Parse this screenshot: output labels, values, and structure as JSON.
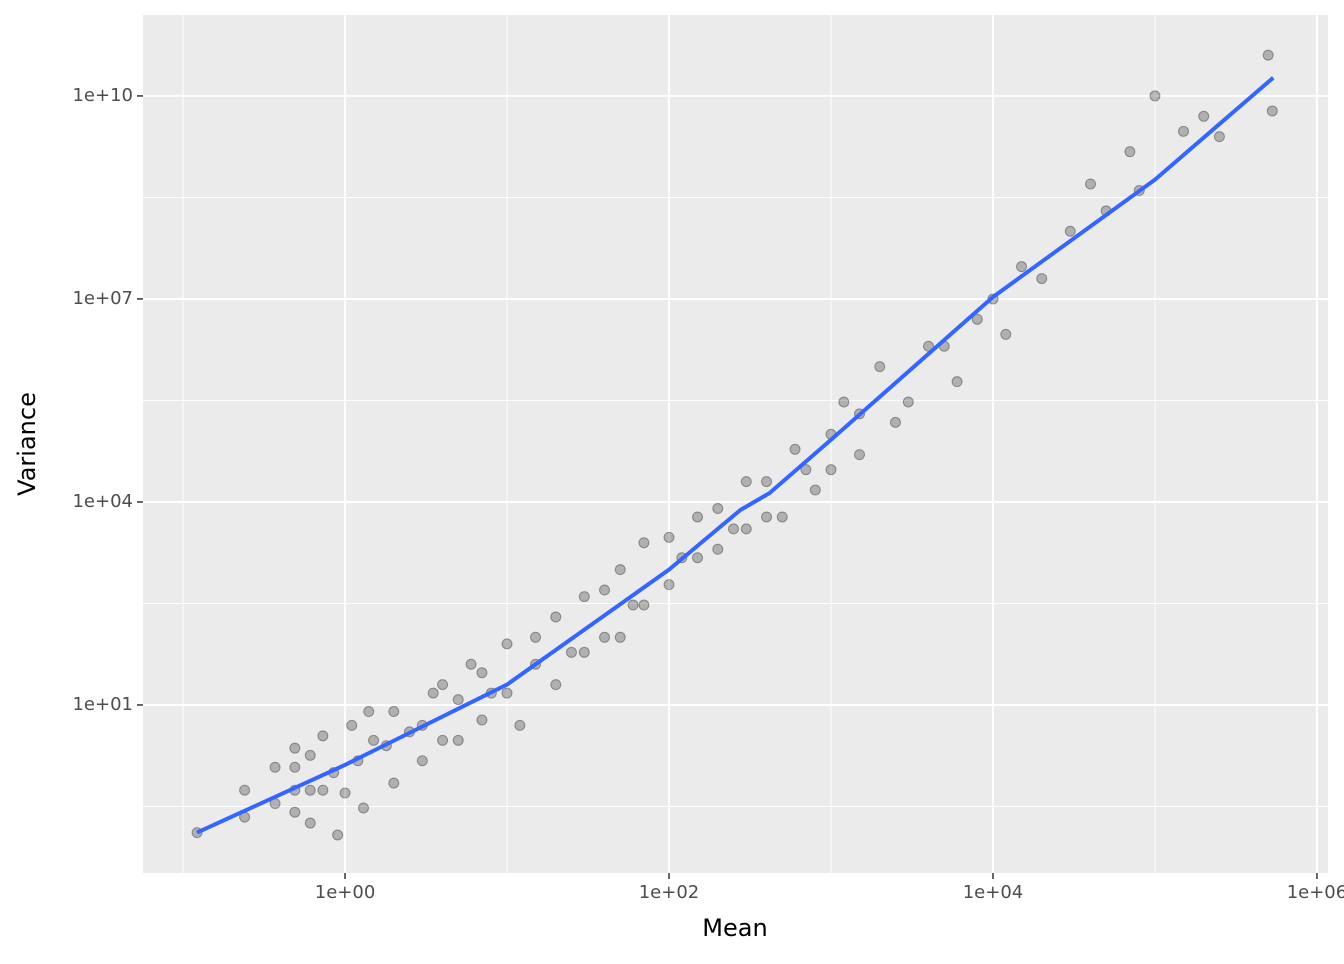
{
  "chart_data": {
    "type": "scatter",
    "x_label": "Mean",
    "y_label": "Variance",
    "xscale": "log",
    "yscale": "log",
    "grid": true,
    "xlim": [
      0.0566,
      1170000
    ],
    "ylim": [
      0.0329,
      157000000000
    ],
    "xticks": [
      {
        "value": 1,
        "label": "1e+00"
      },
      {
        "value": 100,
        "label": "1e+02"
      },
      {
        "value": 10000,
        "label": "1e+04"
      },
      {
        "value": 1000000,
        "label": "1e+06"
      }
    ],
    "yticks": [
      {
        "value": 10,
        "label": "1e+01"
      },
      {
        "value": 10000,
        "label": "1e+04"
      },
      {
        "value": 10000000,
        "label": "1e+07"
      },
      {
        "value": 10000000000,
        "label": "1e+10"
      }
    ],
    "series": [
      {
        "type": "scatter",
        "color": "#000000",
        "x": [
          0.122,
          0.24,
          0.24,
          0.37,
          0.37,
          0.49,
          0.49,
          0.49,
          0.49,
          0.61,
          0.61,
          0.61,
          0.73,
          0.73,
          0.85,
          0.9,
          1.0,
          1.1,
          1.3,
          1.5,
          1.2,
          1.4,
          1.8,
          2,
          2,
          2.5,
          3,
          3,
          3.5,
          4,
          4,
          5,
          5,
          6,
          7,
          7,
          8,
          10,
          10,
          12,
          15,
          15,
          20,
          20,
          25,
          30,
          30,
          40,
          40,
          50,
          50,
          60,
          70,
          70,
          100,
          100,
          120,
          150,
          150,
          200,
          200,
          250,
          300,
          300,
          400,
          400,
          500,
          600,
          700,
          800,
          1000,
          1000,
          1200,
          1500,
          1500,
          2000,
          2500,
          3000,
          4000,
          5000,
          6000,
          8000,
          10000,
          12000,
          15000,
          20000,
          30000,
          40000,
          50000,
          70000,
          80000,
          100000,
          150000,
          200000,
          250000,
          500000,
          530000
        ],
        "values": [
          0.13,
          0.22,
          0.55,
          0.35,
          1.2,
          0.26,
          0.55,
          1.2,
          2.3,
          0.18,
          0.55,
          1.8,
          0.55,
          3.5,
          1,
          0.12,
          0.5,
          5,
          0.3,
          3,
          1.5,
          8,
          2.5,
          0.7,
          8,
          4,
          5,
          1.5,
          15,
          20,
          3,
          3,
          12,
          40,
          30,
          6,
          15,
          80,
          15,
          5,
          40,
          100,
          200,
          20,
          60,
          60,
          400,
          500,
          100,
          100,
          1000,
          300,
          300,
          2500,
          3000,
          600,
          1500,
          1500,
          6000,
          8000,
          2000,
          4000,
          4000,
          20000,
          20000,
          6000,
          6000,
          60000,
          30000,
          15000,
          100000,
          30000,
          300000,
          200000,
          50000,
          1000000,
          150000,
          300000,
          2000000,
          2000000,
          600000,
          5000000,
          10000000,
          3000000,
          30000000,
          20000000,
          100000000,
          500000000,
          200000000,
          1500000000,
          400000000,
          10000000000,
          3000000000,
          5000000000,
          2500000000,
          40000000000,
          6000000000
        ]
      },
      {
        "type": "line",
        "color": "#3366ff",
        "x": [
          0.122,
          1,
          10,
          100,
          276,
          417,
          1000,
          10000,
          100000,
          537000
        ],
        "values": [
          0.13,
          1.3,
          20,
          1000,
          7600,
          13500,
          83000,
          10700000,
          580000000,
          18600000000
        ]
      }
    ]
  }
}
